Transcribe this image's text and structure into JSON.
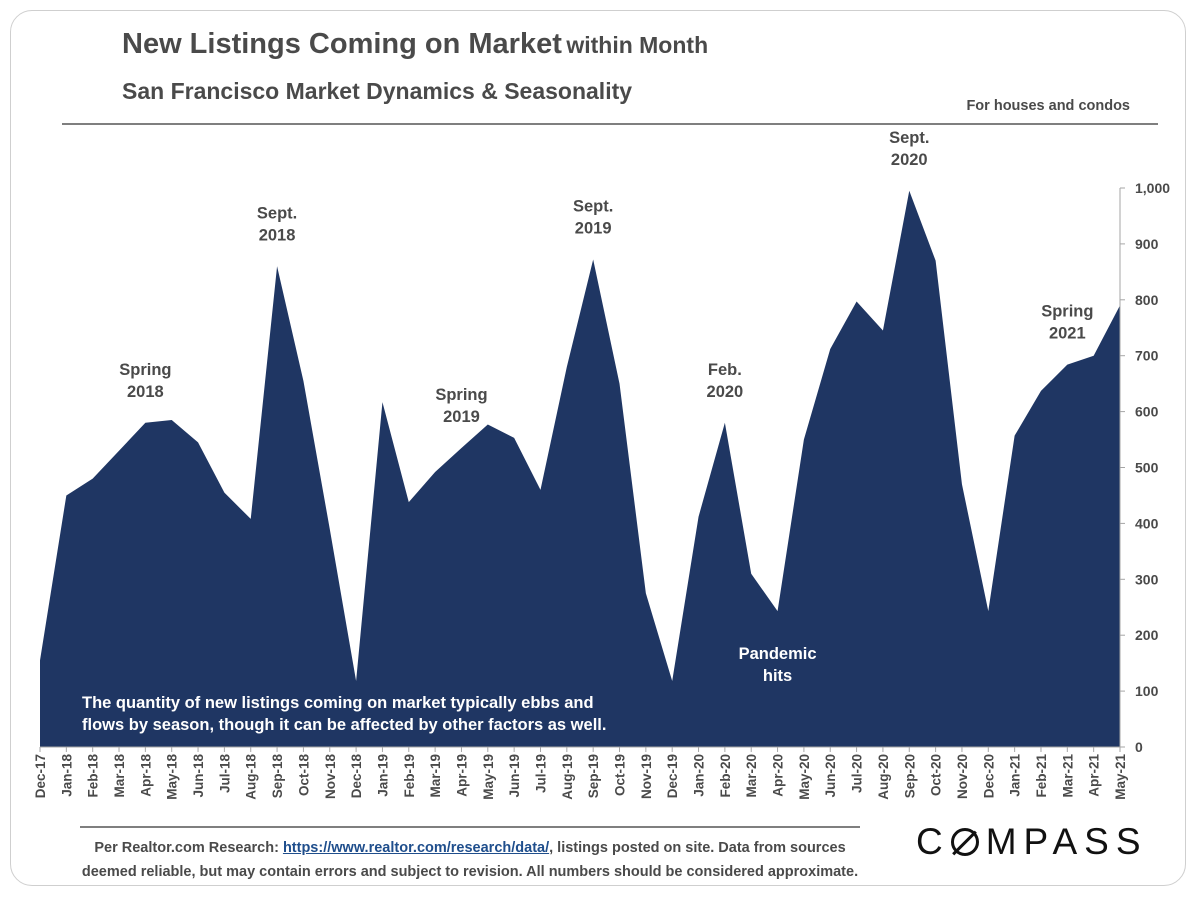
{
  "header": {
    "title_main": "New Listings Coming on Market",
    "title_suffix": "within Month",
    "subtitle": "San Francisco Market Dynamics & Seasonality",
    "scope_note": "For houses and condos"
  },
  "chart_data": {
    "type": "area",
    "title": "New Listings Coming on Market within Month",
    "subtitle": "San Francisco Market Dynamics & Seasonality",
    "xlabel": "",
    "ylabel": "",
    "ylim": [
      0,
      1000
    ],
    "y_ticks": [
      "0",
      "100",
      "200",
      "300",
      "400",
      "500",
      "600",
      "700",
      "800",
      "900",
      "1,000"
    ],
    "y_axis_side": "right",
    "fill_color": "#1f3663",
    "categories": [
      "Dec-17",
      "Jan-18",
      "Feb-18",
      "Mar-18",
      "Apr-18",
      "May-18",
      "Jun-18",
      "Jul-18",
      "Aug-18",
      "Sep-18",
      "Oct-18",
      "Nov-18",
      "Dec-18",
      "Jan-19",
      "Feb-19",
      "Mar-19",
      "Apr-19",
      "May-19",
      "Jun-19",
      "Jul-19",
      "Aug-19",
      "Sep-19",
      "Oct-19",
      "Nov-19",
      "Dec-19",
      "Jan-20",
      "Feb-20",
      "Mar-20",
      "Apr-20",
      "May-20",
      "Jun-20",
      "Jul-20",
      "Aug-20",
      "Sep-20",
      "Oct-20",
      "Nov-20",
      "Dec-20",
      "Jan-21",
      "Feb-21",
      "Mar-21",
      "Apr-21",
      "May-21"
    ],
    "series": [
      {
        "name": "New listings",
        "values": [
          155,
          450,
          480,
          530,
          580,
          585,
          545,
          455,
          408,
          860,
          655,
          390,
          118,
          617,
          438,
          492,
          535,
          577,
          553,
          460,
          680,
          872,
          650,
          275,
          118,
          412,
          580,
          310,
          243,
          550,
          712,
          797,
          745,
          995,
          870,
          470,
          243,
          557,
          637,
          684,
          700,
          790
        ]
      }
    ],
    "annotations": [
      {
        "index": 4,
        "line1": "Spring",
        "line2": "2018",
        "color": "#4a4a4a"
      },
      {
        "index": 9,
        "line1": "Sept.",
        "line2": "2018",
        "color": "#4a4a4a"
      },
      {
        "index": 16,
        "line1": "Spring",
        "line2": "2019",
        "color": "#4a4a4a"
      },
      {
        "index": 21,
        "line1": "Sept.",
        "line2": "2019",
        "color": "#4a4a4a"
      },
      {
        "index": 26,
        "line1": "Feb.",
        "line2": "2020",
        "color": "#4a4a4a"
      },
      {
        "index": 33,
        "line1": "Sept.",
        "line2": "2020",
        "color": "#4a4a4a"
      },
      {
        "index": 39,
        "line1": "Spring",
        "line2": "2021",
        "color": "#4a4a4a"
      },
      {
        "index": 28,
        "line1": "Pandemic",
        "line2": "hits",
        "color": "#ffffff"
      }
    ],
    "inner_note_line1": "The quantity of new listings coming on market typically ebbs and",
    "inner_note_line2": "flows by season, though it can be affected by other factors as well."
  },
  "footer": {
    "prefix": "Per Realtor.com Research:",
    "link_text": "https://www.realtor.com/research/data/",
    "suffix": ", listings posted on site. Data from sources",
    "line2": "deemed reliable, but may contain errors and subject to revision. All numbers should be considered approximate."
  },
  "logo": {
    "first_letter": "C",
    "rest": "MPASS"
  }
}
